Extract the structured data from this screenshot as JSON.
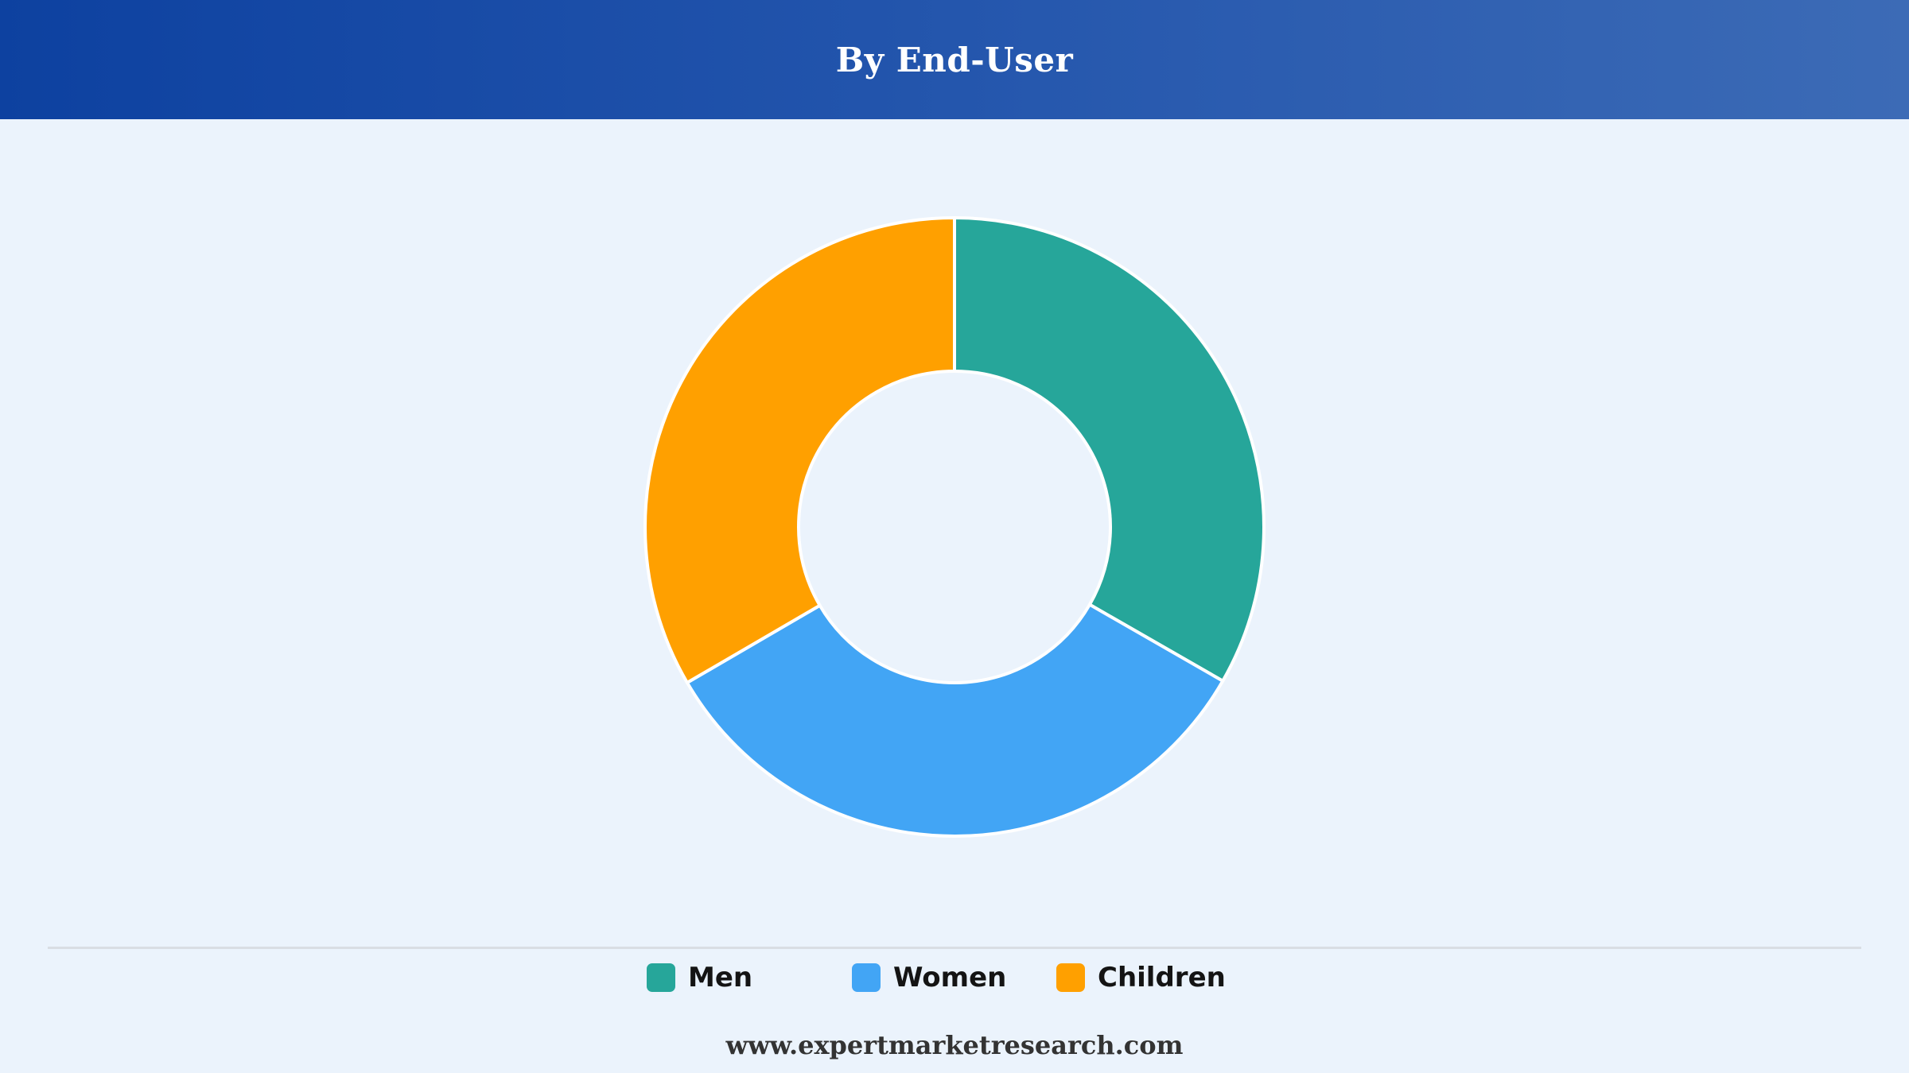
{
  "header": {
    "title": "By End-User"
  },
  "chart_data": {
    "type": "pie",
    "title": "By End-User",
    "donut": true,
    "categories": [
      "Men",
      "Women",
      "Children"
    ],
    "values": [
      33.3,
      33.3,
      33.4
    ],
    "colors": [
      "#26a69a",
      "#42a5f5",
      "#ffa000"
    ],
    "legend_position": "bottom",
    "start_angle": "top, clockwise"
  },
  "legend": {
    "items": [
      {
        "label": "Men",
        "color": "#26a69a"
      },
      {
        "label": "Women",
        "color": "#42a5f5"
      },
      {
        "label": "Children",
        "color": "#ffa000"
      }
    ]
  },
  "footer": {
    "source": "www.expertmarketresearch.com"
  }
}
